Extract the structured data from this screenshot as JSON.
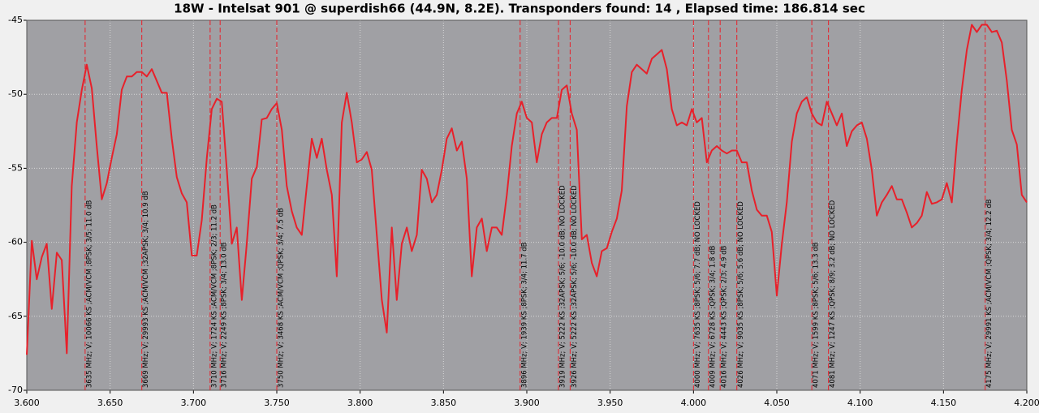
{
  "chart_data": {
    "type": "line",
    "title": "18W - Intelsat 901 @ superdish66 (44.9N, 8.2E). Transponders found: 14 , Elapsed time: 186.814 sec",
    "xlim": [
      3.6,
      4.2
    ],
    "xticks": [
      {
        "value": 3.6,
        "label": "3.600"
      },
      {
        "value": 3.65,
        "label": "3.650"
      },
      {
        "value": 3.7,
        "label": "3.700"
      },
      {
        "value": 3.75,
        "label": "3.750"
      },
      {
        "value": 3.8,
        "label": "3.800"
      },
      {
        "value": 3.85,
        "label": "3.850"
      },
      {
        "value": 3.9,
        "label": "3.900"
      },
      {
        "value": 3.95,
        "label": "3.950"
      },
      {
        "value": 4.0,
        "label": "4.000"
      },
      {
        "value": 4.05,
        "label": "4.050"
      },
      {
        "value": 4.1,
        "label": "4.100"
      },
      {
        "value": 4.15,
        "label": "4.150"
      },
      {
        "value": 4.2,
        "label": "4.200"
      }
    ],
    "ylim": [
      -70,
      -45
    ],
    "yticks": [
      -70,
      -65,
      -60,
      -55,
      -50,
      -45
    ],
    "grid": true,
    "plot_background": "#a0a0a4",
    "marker_color": "#e8202a",
    "x": [
      3.6,
      3.603,
      3.606,
      3.609,
      3.612,
      3.615,
      3.618,
      3.621,
      3.624,
      3.627,
      3.63,
      3.633,
      3.636,
      3.639,
      3.642,
      3.645,
      3.648,
      3.651,
      3.654,
      3.657,
      3.66,
      3.663,
      3.666,
      3.669,
      3.672,
      3.675,
      3.678,
      3.681,
      3.684,
      3.687,
      3.69,
      3.693,
      3.696,
      3.699,
      3.702,
      3.705,
      3.708,
      3.711,
      3.714,
      3.717,
      3.72,
      3.723,
      3.726,
      3.729,
      3.732,
      3.735,
      3.738,
      3.741,
      3.744,
      3.747,
      3.75,
      3.753,
      3.756,
      3.759,
      3.762,
      3.765,
      3.768,
      3.771,
      3.774,
      3.777,
      3.78,
      3.783,
      3.786,
      3.789,
      3.792,
      3.795,
      3.798,
      3.801,
      3.804,
      3.807,
      3.81,
      3.813,
      3.816,
      3.819,
      3.822,
      3.825,
      3.828,
      3.831,
      3.834,
      3.837,
      3.84,
      3.843,
      3.846,
      3.849,
      3.852,
      3.855,
      3.858,
      3.861,
      3.864,
      3.867,
      3.87,
      3.873,
      3.876,
      3.879,
      3.882,
      3.885,
      3.888,
      3.891,
      3.894,
      3.897,
      3.9,
      3.903,
      3.906,
      3.909,
      3.912,
      3.915,
      3.918,
      3.921,
      3.924,
      3.927,
      3.93,
      3.933,
      3.936,
      3.939,
      3.942,
      3.945,
      3.948,
      3.951,
      3.954,
      3.957,
      3.96,
      3.963,
      3.966,
      3.969,
      3.972,
      3.975,
      3.978,
      3.981,
      3.984,
      3.987,
      3.99,
      3.993,
      3.996,
      3.999,
      4.002,
      4.005,
      4.008,
      4.011,
      4.014,
      4.017,
      4.02,
      4.023,
      4.026,
      4.029,
      4.032,
      4.035,
      4.038,
      4.041,
      4.044,
      4.047,
      4.05,
      4.053,
      4.056,
      4.059,
      4.062,
      4.065,
      4.068,
      4.071,
      4.074,
      4.077,
      4.08,
      4.083,
      4.086,
      4.089,
      4.092,
      4.095,
      4.098,
      4.101,
      4.104,
      4.107,
      4.11,
      4.113,
      4.116,
      4.119,
      4.122,
      4.125,
      4.128,
      4.131,
      4.134,
      4.137,
      4.14,
      4.143,
      4.146,
      4.149,
      4.152,
      4.155,
      4.158,
      4.161,
      4.164,
      4.167,
      4.17,
      4.173,
      4.176,
      4.179,
      4.182,
      4.185,
      4.188,
      4.191,
      4.194,
      4.197,
      4.2
    ],
    "series": [
      {
        "color": "#e8202a",
        "values": [
          -67.6,
          -59.9,
          -62.5,
          -61.0,
          -60.1,
          -64.5,
          -60.7,
          -61.2,
          -67.5,
          -56.2,
          -51.9,
          -49.7,
          -48.0,
          -49.6,
          -53.5,
          -57.1,
          -56.0,
          -54.3,
          -52.7,
          -49.7,
          -48.8,
          -48.8,
          -48.5,
          -48.5,
          -48.8,
          -48.3,
          -49.1,
          -49.9,
          -49.9,
          -53.0,
          -55.6,
          -56.7,
          -57.3,
          -60.9,
          -60.9,
          -58.5,
          -54.3,
          -51.0,
          -50.3,
          -50.5,
          -55.1,
          -60.1,
          -59.0,
          -63.9,
          -60.1,
          -55.7,
          -54.9,
          -51.7,
          -51.6,
          -51.0,
          -50.6,
          -52.4,
          -56.2,
          -57.9,
          -59.0,
          -59.5,
          -56.2,
          -53.0,
          -54.3,
          -53.0,
          -55.1,
          -56.8,
          -62.3,
          -51.9,
          -49.9,
          -51.9,
          -54.6,
          -54.4,
          -53.9,
          -55.1,
          -59.5,
          -63.9,
          -66.1,
          -59.0,
          -63.9,
          -60.1,
          -59.0,
          -60.6,
          -59.5,
          -55.1,
          -55.7,
          -57.3,
          -56.8,
          -55.1,
          -53.0,
          -52.3,
          -53.8,
          -53.2,
          -55.7,
          -62.3,
          -59.0,
          -58.4,
          -60.6,
          -59.0,
          -59.0,
          -59.5,
          -56.8,
          -53.5,
          -51.3,
          -50.5,
          -51.6,
          -51.9,
          -54.6,
          -52.7,
          -51.9,
          -51.6,
          -51.6,
          -49.7,
          -49.4,
          -51.3,
          -52.4,
          -59.8,
          -59.5,
          -61.4,
          -62.3,
          -60.6,
          -60.4,
          -59.3,
          -58.4,
          -56.5,
          -50.8,
          -48.5,
          -48.0,
          -48.3,
          -48.6,
          -47.6,
          -47.3,
          -47.0,
          -48.3,
          -51.0,
          -52.1,
          -51.9,
          -52.1,
          -51.0,
          -51.9,
          -51.6,
          -54.6,
          -53.8,
          -53.5,
          -53.8,
          -54.0,
          -53.8,
          -53.8,
          -54.6,
          -54.6,
          -56.5,
          -57.8,
          -58.2,
          -58.2,
          -59.3,
          -63.6,
          -60.1,
          -57.3,
          -53.2,
          -51.3,
          -50.5,
          -50.2,
          -51.3,
          -51.9,
          -52.1,
          -50.5,
          -51.3,
          -52.1,
          -51.3,
          -53.5,
          -52.5,
          -52.1,
          -51.9,
          -53.0,
          -55.1,
          -58.2,
          -57.3,
          -56.8,
          -56.2,
          -57.1,
          -57.1,
          -58.0,
          -59.0,
          -58.7,
          -58.2,
          -56.6,
          -57.4,
          -57.3,
          -57.1,
          -56.0,
          -57.3,
          -53.2,
          -49.7,
          -47.0,
          -45.3,
          -45.8,
          -45.3,
          -45.3,
          -45.8,
          -45.7,
          -46.5,
          -49.1,
          -52.4,
          -53.4,
          -56.8,
          -57.3
        ]
      }
    ],
    "markers": [
      {
        "x": 3.635,
        "label": "3635 MHz; V; 10066 KS ;ACM/VCM ;8PSK; 3/5; 11.0 dB"
      },
      {
        "x": 3.669,
        "label": "3669 MHz; V; 29993 KS ;ACM/VCM ;32APSK; 3/4; 10.9 dB"
      },
      {
        "x": 3.71,
        "label": "3710 MHz; V; 1724 KS ;ACM/VCM ;8PSK; 2/3; 11.2 dB"
      },
      {
        "x": 3.716,
        "label": "3716 MHz; V; 2249 KS ;8PSK; 3/4; 13.0 dB"
      },
      {
        "x": 3.75,
        "label": "3750 MHz; V; 3468 KS ;ACM/VCM ;QPSK; 3/4; 7.5 dB"
      },
      {
        "x": 3.896,
        "label": "3896 MHz; V; 1939 KS ;8PSK; 3/4; 11.7 dB"
      },
      {
        "x": 3.919,
        "label": "3919 MHz; V; 5222 KS ;32APSK; 5/6; -10.0 dB; NO LOCKED"
      },
      {
        "x": 3.926,
        "label": "3926 MHz; V; 5222 KS ;32APSK; 5/6; -10.0 dB; NO LOCKED"
      },
      {
        "x": 4.0,
        "label": "4000 MHz; V; 7635 KS ;8PSK; 5/6; 7.7 dB; NO LOCKED"
      },
      {
        "x": 4.009,
        "label": "4009 MHz; V; 6728 KS ;QPSK; 3/4; 1.8 dB"
      },
      {
        "x": 4.016,
        "label": "4016 MHz; V; 4443 KS ;QPSK; 2/3; 4.9 dB"
      },
      {
        "x": 4.026,
        "label": "4026 MHz; V; 9035 KS ;8PSK; 5/6; 5.6 dB; NO LOCKED"
      },
      {
        "x": 4.071,
        "label": "4071 MHz; V; 1599 KS ;8PSK; 5/6; 13.3 dB"
      },
      {
        "x": 4.081,
        "label": "4081 MHz; V; 1247 KS ;QPSK; 8/9; 3.2 dB; NO LOCKED"
      },
      {
        "x": 4.175,
        "label": "4175 MHz; V; 29991 KS ;ACM/VCM ;QPSK; 3/4; 12.2 dB"
      }
    ]
  }
}
